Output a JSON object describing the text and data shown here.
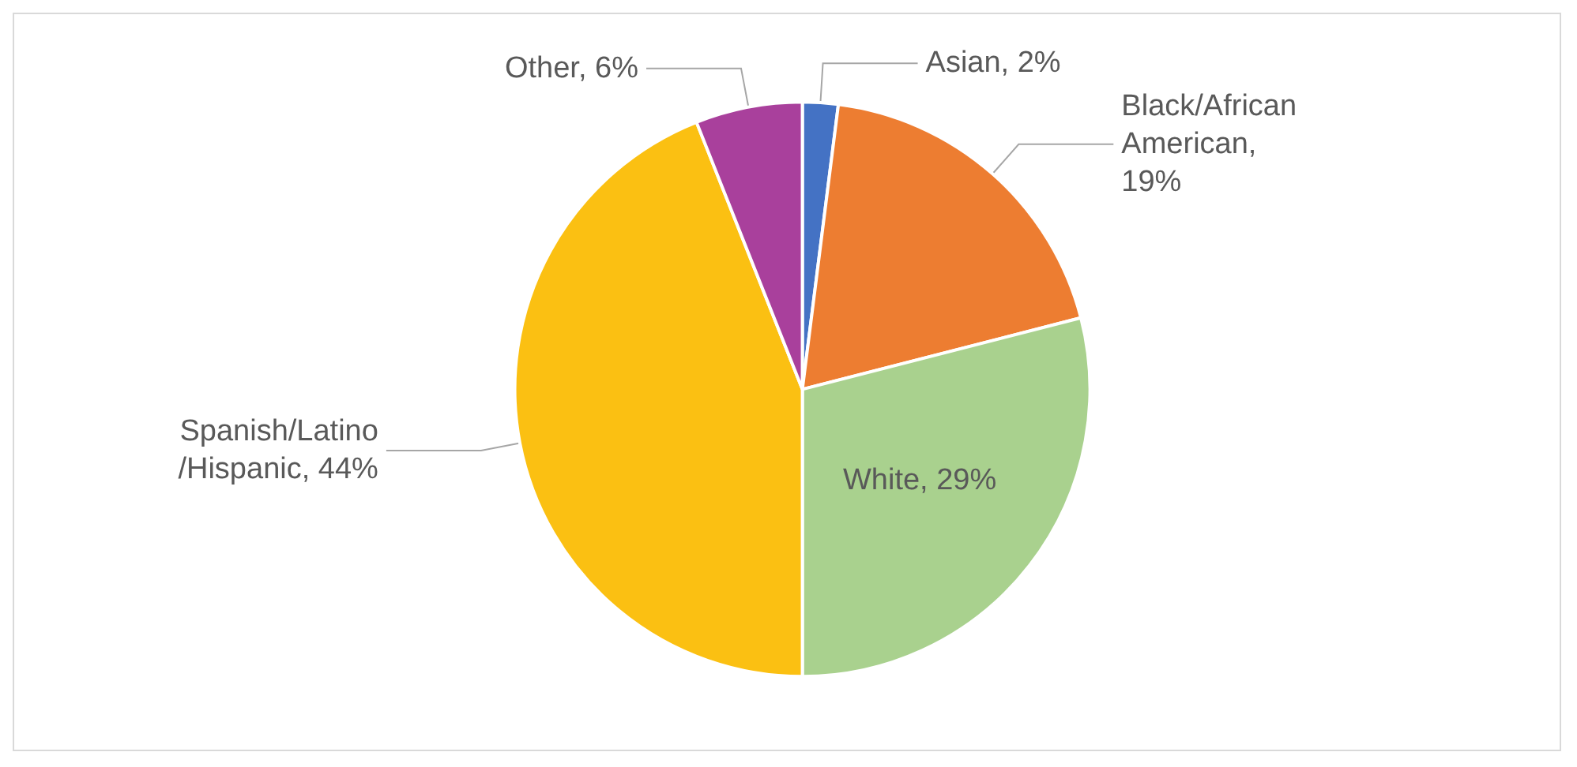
{
  "chart_data": {
    "type": "pie",
    "categories": [
      "Asian, 2%",
      "Black/African\nAmerican,\n19%",
      "White, 29%",
      "Spanish/Latino\n/Hispanic, 44%",
      "Other, 6%"
    ],
    "values": [
      2,
      19,
      29,
      44,
      6
    ],
    "colors": [
      "#4472c4",
      "#ed7d31",
      "#a9d18e",
      "#fbc012",
      "#a9409c"
    ]
  }
}
